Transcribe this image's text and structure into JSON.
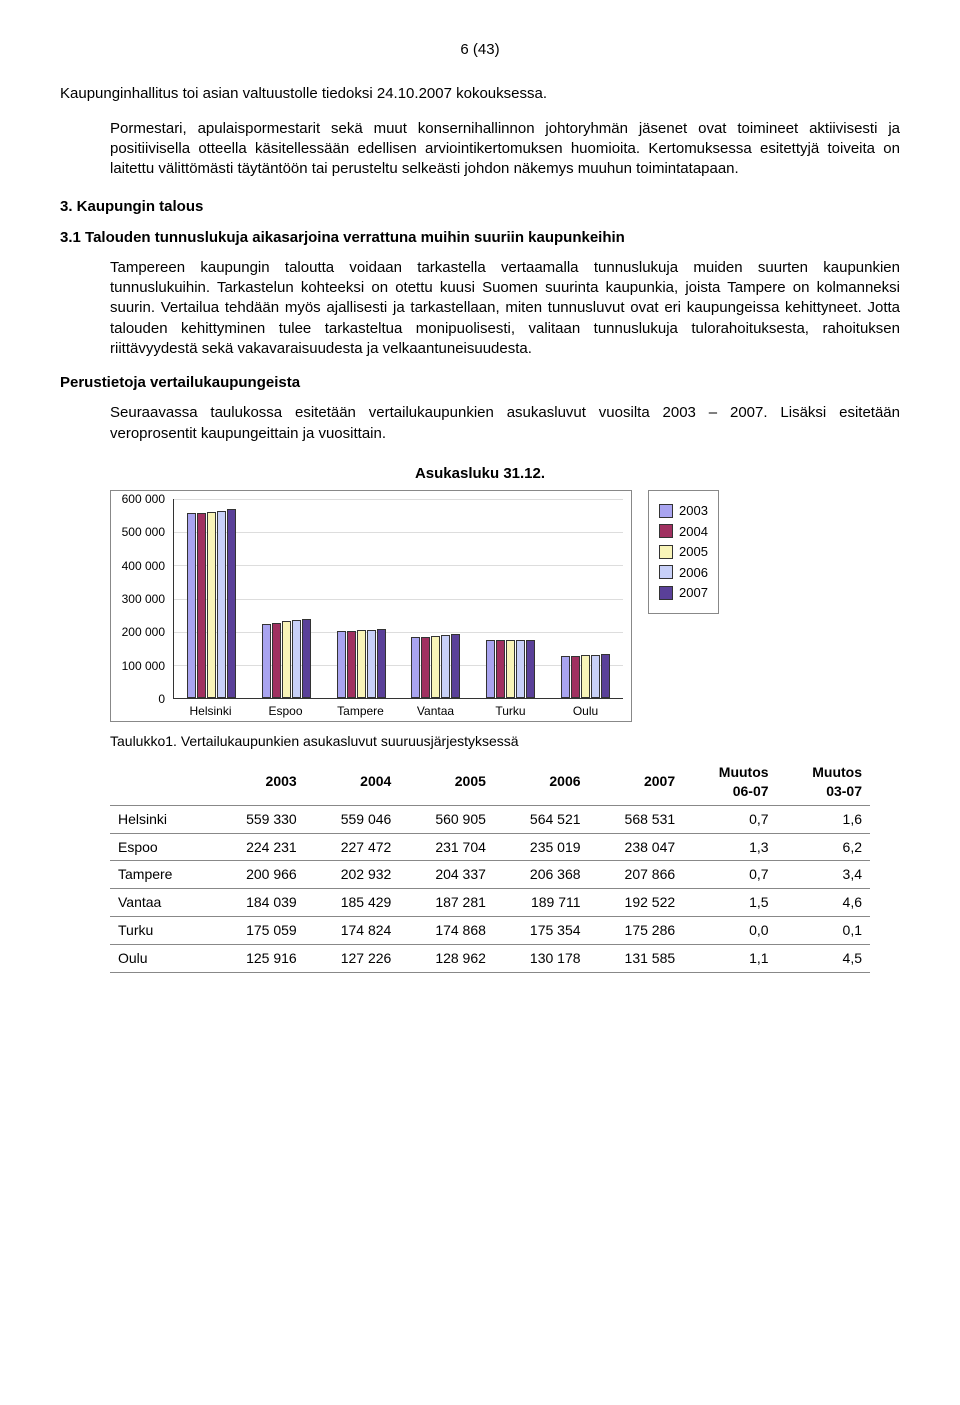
{
  "page_number": "6 (43)",
  "intro": "Kaupunginhallitus toi asian valtuustolle tiedoksi 24.10.2007 kokouksessa.",
  "quote": "Pormestari, apulaispormestarit sekä muut konsernihallinnon johtoryhmän jäsenet ovat toimineet aktiivisesti ja positiivisella otteella käsitellessään edellisen arviointikertomuksen huomioita. Kertomuksessa esitettyjä toiveita on laitettu välittömästi täytäntöön tai perusteltu selkeästi johdon näkemys muuhun toimintatapaan.",
  "section3_heading": "3. Kaupungin talous",
  "section31_heading": "3.1 Talouden tunnuslukuja aikasarjoina verrattuna muihin suuriin kaupunkeihin",
  "para1": "Tampereen kaupungin taloutta voidaan tarkastella vertaamalla tunnuslukuja muiden suurten kaupunkien tunnuslukuihin. Tarkastelun kohteeksi on otettu kuusi Suomen suurinta kaupunkia, joista Tampere on kolmanneksi suurin. Vertailua tehdään myös ajallisesti ja tarkastellaan, miten tunnusluvut ovat eri kaupungeissa kehittyneet. Jotta talouden kehittyminen tulee tarkasteltua monipuolisesti, valitaan tunnuslukuja tulorahoituksesta, rahoituksen riittävyydestä sekä vakavaraisuudesta ja velkaantuneisuudesta.",
  "subheading": "Perustietoja vertailukaupungeista",
  "para2": "Seuraavassa taulukossa esitetään vertailukaupunkien asukasluvut vuosilta 2003 – 2007. Lisäksi esitetään veroprosentit kaupungeittain ja vuosittain.",
  "chart": {
    "title": "Asukasluku 31.12.",
    "ymax": 600000,
    "ytick_step": 100000,
    "categories": [
      "Helsinki",
      "Espoo",
      "Tampere",
      "Vantaa",
      "Turku",
      "Oulu"
    ],
    "series_labels": [
      "2003",
      "2004",
      "2005",
      "2006",
      "2007"
    ],
    "series_colors": [
      "#a9a4f0",
      "#a03060",
      "#f8f4b8",
      "#c8d0f8",
      "#5a4099"
    ],
    "data": [
      [
        559330,
        559046,
        560905,
        564521,
        568531
      ],
      [
        224231,
        227472,
        231704,
        235019,
        238047
      ],
      [
        200966,
        202932,
        204337,
        206368,
        207866
      ],
      [
        184039,
        185429,
        187281,
        189711,
        192522
      ],
      [
        175059,
        174824,
        174868,
        175354,
        175286
      ],
      [
        125916,
        127226,
        128962,
        130178,
        131585
      ]
    ]
  },
  "table_caption": "Taulukko1. Vertailukaupunkien asukasluvut suuruusjärjestyksessä",
  "table": {
    "columns": [
      "",
      "2003",
      "2004",
      "2005",
      "2006",
      "2007",
      "Muutos 06-07",
      "Muutos 03-07"
    ],
    "rows": [
      [
        "Helsinki",
        "559 330",
        "559 046",
        "560 905",
        "564 521",
        "568 531",
        "0,7",
        "1,6"
      ],
      [
        "Espoo",
        "224 231",
        "227 472",
        "231 704",
        "235 019",
        "238 047",
        "1,3",
        "6,2"
      ],
      [
        "Tampere",
        "200 966",
        "202 932",
        "204 337",
        "206 368",
        "207 866",
        "0,7",
        "3,4"
      ],
      [
        "Vantaa",
        "184 039",
        "185 429",
        "187 281",
        "189 711",
        "192 522",
        "1,5",
        "4,6"
      ],
      [
        "Turku",
        "175 059",
        "174 824",
        "174 868",
        "175 354",
        "175 286",
        "0,0",
        "0,1"
      ],
      [
        "Oulu",
        "125 916",
        "127 226",
        "128 962",
        "130 178",
        "131 585",
        "1,1",
        "4,5"
      ]
    ]
  }
}
